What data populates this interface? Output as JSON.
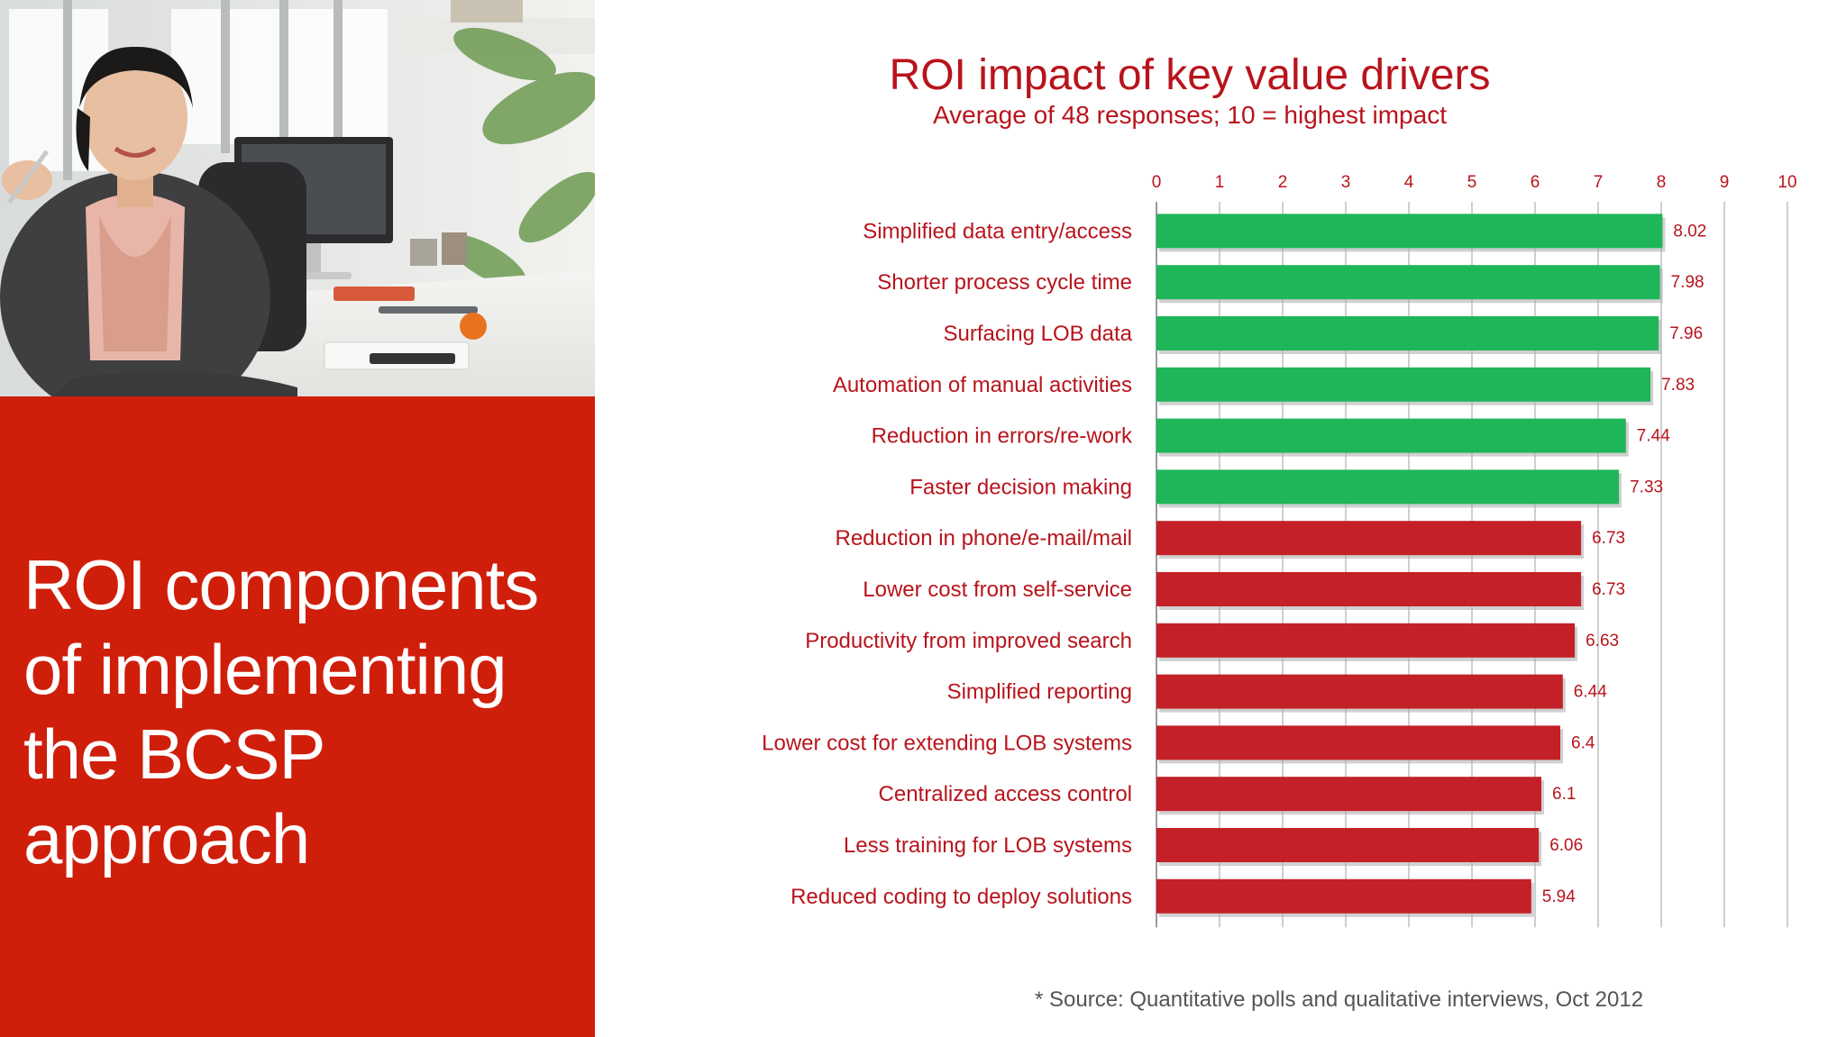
{
  "panel": {
    "title": "ROI components\nof implementing\nthe BCSP approach",
    "background_color": "#cf1f0b"
  },
  "chart_data": {
    "type": "bar",
    "orientation": "horizontal",
    "title": "ROI impact of key value drivers",
    "subtitle": "Average of 48 responses; 10 = highest impact",
    "xlim": [
      0,
      10
    ],
    "x_ticks": [
      0,
      1,
      2,
      3,
      4,
      5,
      6,
      7,
      8,
      9,
      10
    ],
    "grid": "vertical",
    "categories": [
      "Simplified data entry/access",
      "Shorter process cycle time",
      "Surfacing LOB data",
      "Automation of manual activities",
      "Reduction in errors/re-work",
      "Faster decision making",
      "Reduction in phone/e-mail/mail",
      "Lower cost from self-service",
      "Productivity from improved search",
      "Simplified reporting",
      "Lower cost for extending LOB systems",
      "Centralized access control",
      "Less training for LOB systems",
      "Reduced coding to deploy solutions"
    ],
    "values": [
      8.02,
      7.98,
      7.96,
      7.83,
      7.44,
      7.33,
      6.73,
      6.73,
      6.63,
      6.44,
      6.4,
      6.1,
      6.06,
      5.94
    ],
    "value_labels": [
      "8.02",
      "7.98",
      "7.96",
      "7.83",
      "7.44",
      "7.33",
      "6.73",
      "6.73",
      "6.63",
      "6.44",
      "6.4",
      "6.1",
      "6.06",
      "5.94"
    ],
    "bar_colors": [
      "#1fb65a",
      "#1fb65a",
      "#1fb65a",
      "#1fb65a",
      "#1fb65a",
      "#1fb65a",
      "#c42027",
      "#c42027",
      "#c42027",
      "#c42027",
      "#c42027",
      "#c42027",
      "#c42027",
      "#c42027"
    ],
    "text_color": "#b8141c"
  },
  "footer": {
    "source": "* Source: Quantitative polls and qualitative interviews, Oct 2012"
  }
}
